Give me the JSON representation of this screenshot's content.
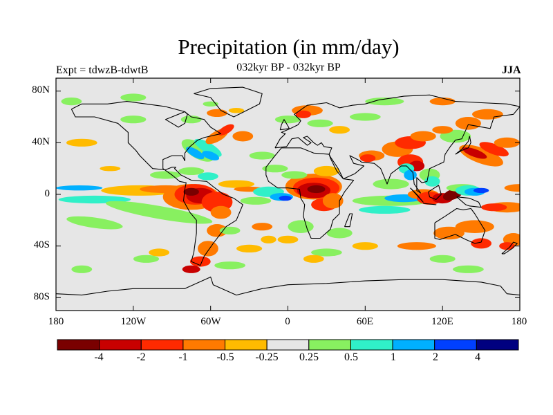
{
  "figure": {
    "title": "Precipitation (in mm/day)",
    "experiment_label": "Expt = tdwzB-tdwtB",
    "subtitle": "032kyr BP - 032kyr BP",
    "season": "JJA"
  },
  "map": {
    "projection": "equirectangular",
    "lat_ticks": [
      "80N",
      "40N",
      "0",
      "40S",
      "80S"
    ],
    "lon_ticks": [
      "180",
      "120W",
      "60W",
      "0",
      "60E",
      "120E",
      "180"
    ],
    "background_color": "#e6e6e6"
  },
  "colorbar": {
    "labels": [
      "-4",
      "-2",
      "-1",
      "-0.5",
      "-0.25",
      "0.25",
      "0.5",
      "1",
      "2",
      "4"
    ],
    "colors": [
      "#7a0000",
      "#c80000",
      "#ff2a00",
      "#ff7a00",
      "#ffbb00",
      "#e6e6e6",
      "#88f060",
      "#30f0c8",
      "#00b0ff",
      "#0040ff",
      "#000080"
    ]
  },
  "chart_data": {
    "type": "heatmap",
    "title": "Precipitation (in mm/day)",
    "subtitle": "032kyr BP - 032kyr BP",
    "xlim": [
      -180,
      180
    ],
    "ylim": [
      -90,
      90
    ],
    "levels": [
      -4,
      -2,
      -1,
      -0.5,
      -0.25,
      0.25,
      0.5,
      1,
      2,
      4
    ]
  }
}
